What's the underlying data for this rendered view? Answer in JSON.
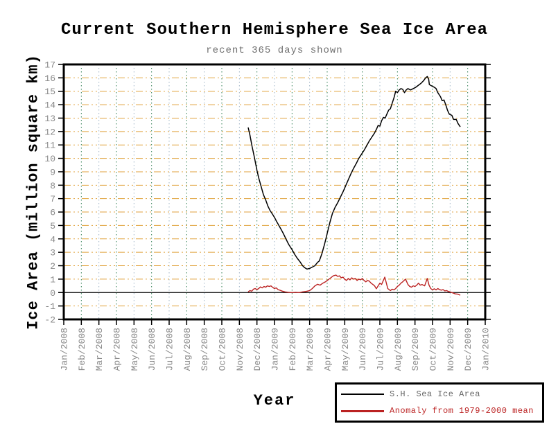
{
  "title": "Current Southern Hemisphere Sea Ice Area",
  "subtitle": "recent 365 days shown",
  "y_axis_label": "Ice Area (million square km)",
  "x_axis_label": "Year",
  "colors": {
    "series_ice": "#000000",
    "series_anomaly": "#bb2222",
    "h_grid": "#e0a23c",
    "v_grid_odd": "#2e7d52",
    "v_grid_even": "#9fb4c6",
    "tick_label": "#888888",
    "zero_line": "#000000",
    "axis_frame": "#000000"
  },
  "legend": {
    "items": [
      {
        "label": "S.H. Sea Ice Area",
        "line_color": "#000000",
        "text_color": "#666666",
        "line_thickness": 2
      },
      {
        "label": "Anomaly from 1979-2000 mean",
        "line_color": "#bb2222",
        "text_color": "#bb2222",
        "line_thickness": 3
      }
    ]
  },
  "chart_data": {
    "type": "line",
    "title": "Current Southern Hemisphere Sea Ice Area",
    "subtitle": "recent 365 days shown",
    "xlabel": "Year",
    "ylabel": "Ice Area (million square km)",
    "ylim": [
      -2,
      17
    ],
    "y_ticks": [
      -2,
      -1,
      0,
      1,
      2,
      3,
      4,
      5,
      6,
      7,
      8,
      9,
      10,
      11,
      12,
      13,
      14,
      15,
      16,
      17
    ],
    "x_unit": "month index from Jan/2008 (0 = Jan/2008, 24 = Jan/2010)",
    "xlim": [
      0,
      24
    ],
    "x_tick_labels": [
      "Jan/2008",
      "Feb/2008",
      "Mar/2008",
      "Apr/2008",
      "May/2008",
      "Jun/2008",
      "Jul/2008",
      "Aug/2008",
      "Sep/2008",
      "Oct/2008",
      "Nov/2008",
      "Dec/2008",
      "Jan/2009",
      "Feb/2009",
      "Mar/2009",
      "Apr/2009",
      "May/2009",
      "Jun/2009",
      "Jul/2009",
      "Aug/2009",
      "Sep/2009",
      "Oct/2009",
      "Nov/2009",
      "Dec/2009",
      "Jan/2010"
    ],
    "grid": {
      "horizontal": "orange dash-dot at every integer",
      "vertical": "dotted at every month",
      "zero_line": "solid black"
    },
    "legend_position": "below plot, bottom right",
    "series": [
      {
        "name": "S.H. Sea Ice Area",
        "color": "#000000",
        "points": [
          [
            10.5,
            12.3
          ],
          [
            10.6,
            11.75
          ],
          [
            10.72,
            10.9
          ],
          [
            10.85,
            10.1
          ],
          [
            11.0,
            9.1
          ],
          [
            11.12,
            8.45
          ],
          [
            11.25,
            7.85
          ],
          [
            11.37,
            7.3
          ],
          [
            11.5,
            6.9
          ],
          [
            11.62,
            6.45
          ],
          [
            11.75,
            6.1
          ],
          [
            11.88,
            5.85
          ],
          [
            12.0,
            5.6
          ],
          [
            12.12,
            5.3
          ],
          [
            12.25,
            5.0
          ],
          [
            12.38,
            4.7
          ],
          [
            12.5,
            4.4
          ],
          [
            12.65,
            4.0
          ],
          [
            12.8,
            3.6
          ],
          [
            13.0,
            3.2
          ],
          [
            13.15,
            2.85
          ],
          [
            13.3,
            2.55
          ],
          [
            13.45,
            2.3
          ],
          [
            13.6,
            2.0
          ],
          [
            13.72,
            1.85
          ],
          [
            13.85,
            1.75
          ],
          [
            14.0,
            1.8
          ],
          [
            14.15,
            1.9
          ],
          [
            14.3,
            2.0
          ],
          [
            14.45,
            2.25
          ],
          [
            14.55,
            2.35
          ],
          [
            14.7,
            2.9
          ],
          [
            14.85,
            3.6
          ],
          [
            15.0,
            4.4
          ],
          [
            15.15,
            5.2
          ],
          [
            15.3,
            5.9
          ],
          [
            15.45,
            6.35
          ],
          [
            15.6,
            6.7
          ],
          [
            15.75,
            7.1
          ],
          [
            15.9,
            7.5
          ],
          [
            16.05,
            7.95
          ],
          [
            16.2,
            8.4
          ],
          [
            16.35,
            8.85
          ],
          [
            16.5,
            9.25
          ],
          [
            16.65,
            9.6
          ],
          [
            16.8,
            10.0
          ],
          [
            16.95,
            10.3
          ],
          [
            17.1,
            10.6
          ],
          [
            17.25,
            10.95
          ],
          [
            17.4,
            11.3
          ],
          [
            17.55,
            11.6
          ],
          [
            17.7,
            11.9
          ],
          [
            17.8,
            12.15
          ],
          [
            17.9,
            12.45
          ],
          [
            18.0,
            12.4
          ],
          [
            18.1,
            12.8
          ],
          [
            18.2,
            13.05
          ],
          [
            18.3,
            13.0
          ],
          [
            18.4,
            13.3
          ],
          [
            18.5,
            13.6
          ],
          [
            18.6,
            13.7
          ],
          [
            18.7,
            14.1
          ],
          [
            18.8,
            14.5
          ],
          [
            18.9,
            15.0
          ],
          [
            19.0,
            14.9
          ],
          [
            19.1,
            15.1
          ],
          [
            19.2,
            15.2
          ],
          [
            19.3,
            15.15
          ],
          [
            19.4,
            14.9
          ],
          [
            19.5,
            15.1
          ],
          [
            19.6,
            15.2
          ],
          [
            19.75,
            15.1
          ],
          [
            19.9,
            15.2
          ],
          [
            20.05,
            15.3
          ],
          [
            20.2,
            15.45
          ],
          [
            20.35,
            15.6
          ],
          [
            20.5,
            15.8
          ],
          [
            20.6,
            16.0
          ],
          [
            20.7,
            16.1
          ],
          [
            20.78,
            15.9
          ],
          [
            20.82,
            15.5
          ],
          [
            20.95,
            15.4
          ],
          [
            21.1,
            15.3
          ],
          [
            21.2,
            15.2
          ],
          [
            21.3,
            14.9
          ],
          [
            21.45,
            14.6
          ],
          [
            21.55,
            14.3
          ],
          [
            21.65,
            14.35
          ],
          [
            21.75,
            14.0
          ],
          [
            21.85,
            13.6
          ],
          [
            21.95,
            13.3
          ],
          [
            22.1,
            13.2
          ],
          [
            22.2,
            12.9
          ],
          [
            22.35,
            12.9
          ],
          [
            22.45,
            12.6
          ],
          [
            22.58,
            12.35
          ]
        ]
      },
      {
        "name": "Anomaly from 1979-2000 mean",
        "color": "#bb2222",
        "points": [
          [
            10.5,
            0.05
          ],
          [
            10.6,
            0.15
          ],
          [
            10.7,
            0.1
          ],
          [
            10.8,
            0.25
          ],
          [
            10.9,
            0.3
          ],
          [
            11.0,
            0.22
          ],
          [
            11.1,
            0.3
          ],
          [
            11.2,
            0.42
          ],
          [
            11.3,
            0.35
          ],
          [
            11.4,
            0.45
          ],
          [
            11.5,
            0.4
          ],
          [
            11.6,
            0.5
          ],
          [
            11.7,
            0.45
          ],
          [
            11.8,
            0.5
          ],
          [
            11.9,
            0.38
          ],
          [
            12.0,
            0.3
          ],
          [
            12.1,
            0.35
          ],
          [
            12.2,
            0.22
          ],
          [
            12.3,
            0.18
          ],
          [
            12.45,
            0.1
          ],
          [
            12.6,
            0.05
          ],
          [
            12.8,
            0.02
          ],
          [
            13.0,
            0.0
          ],
          [
            13.2,
            0.02
          ],
          [
            13.4,
            0.0
          ],
          [
            13.6,
            0.05
          ],
          [
            13.8,
            0.08
          ],
          [
            14.0,
            0.15
          ],
          [
            14.15,
            0.3
          ],
          [
            14.3,
            0.5
          ],
          [
            14.45,
            0.62
          ],
          [
            14.6,
            0.55
          ],
          [
            14.75,
            0.7
          ],
          [
            14.9,
            0.8
          ],
          [
            15.05,
            0.95
          ],
          [
            15.2,
            1.1
          ],
          [
            15.35,
            1.25
          ],
          [
            15.5,
            1.3
          ],
          [
            15.6,
            1.2
          ],
          [
            15.7,
            1.25
          ],
          [
            15.8,
            1.1
          ],
          [
            15.9,
            1.15
          ],
          [
            16.0,
            1.0
          ],
          [
            16.1,
            0.9
          ],
          [
            16.2,
            1.05
          ],
          [
            16.3,
            0.95
          ],
          [
            16.4,
            1.1
          ],
          [
            16.5,
            1.0
          ],
          [
            16.6,
            1.05
          ],
          [
            16.7,
            0.9
          ],
          [
            16.8,
            1.0
          ],
          [
            16.9,
            0.95
          ],
          [
            17.0,
            1.05
          ],
          [
            17.1,
            0.9
          ],
          [
            17.2,
            0.8
          ],
          [
            17.3,
            0.9
          ],
          [
            17.4,
            0.85
          ],
          [
            17.5,
            0.7
          ],
          [
            17.6,
            0.6
          ],
          [
            17.7,
            0.5
          ],
          [
            17.8,
            0.28
          ],
          [
            17.9,
            0.5
          ],
          [
            18.0,
            0.7
          ],
          [
            18.1,
            0.6
          ],
          [
            18.28,
            1.15
          ],
          [
            18.35,
            0.8
          ],
          [
            18.45,
            0.3
          ],
          [
            18.6,
            0.15
          ],
          [
            18.7,
            0.25
          ],
          [
            18.8,
            0.2
          ],
          [
            18.9,
            0.3
          ],
          [
            19.0,
            0.45
          ],
          [
            19.1,
            0.55
          ],
          [
            19.2,
            0.7
          ],
          [
            19.3,
            0.8
          ],
          [
            19.46,
            1.0
          ],
          [
            19.6,
            0.6
          ],
          [
            19.7,
            0.45
          ],
          [
            19.8,
            0.4
          ],
          [
            19.9,
            0.5
          ],
          [
            20.0,
            0.45
          ],
          [
            20.1,
            0.55
          ],
          [
            20.2,
            0.7
          ],
          [
            20.3,
            0.55
          ],
          [
            20.4,
            0.6
          ],
          [
            20.55,
            0.5
          ],
          [
            20.7,
            1.05
          ],
          [
            20.8,
            0.55
          ],
          [
            20.9,
            0.3
          ],
          [
            21.0,
            0.2
          ],
          [
            21.1,
            0.28
          ],
          [
            21.2,
            0.2
          ],
          [
            21.3,
            0.3
          ],
          [
            21.4,
            0.22
          ],
          [
            21.5,
            0.18
          ],
          [
            21.6,
            0.22
          ],
          [
            21.7,
            0.12
          ],
          [
            21.8,
            0.15
          ],
          [
            21.9,
            0.08
          ],
          [
            22.0,
            0.05
          ],
          [
            22.1,
            0.0
          ],
          [
            22.2,
            -0.05
          ],
          [
            22.3,
            -0.1
          ],
          [
            22.45,
            -0.12
          ],
          [
            22.58,
            -0.2
          ]
        ]
      }
    ]
  }
}
